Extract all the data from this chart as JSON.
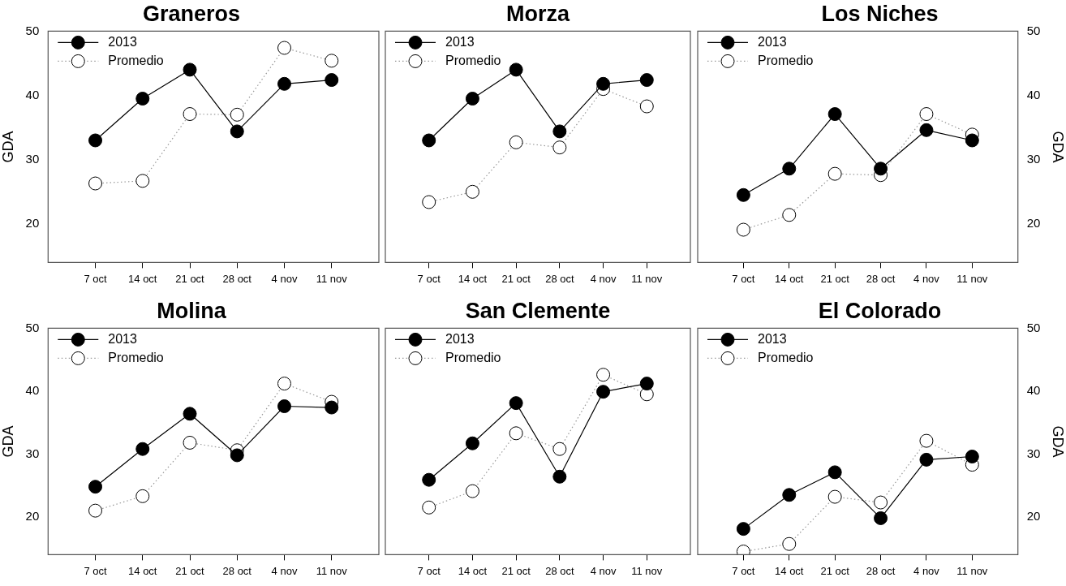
{
  "chart_data": [
    {
      "type": "line",
      "title": "Graneros",
      "ylabel": "GDA",
      "categories": [
        "7 oct",
        "14 oct",
        "21 oct",
        "28 oct",
        "4 nov",
        "11 nov"
      ],
      "ylim": [
        14,
        50
      ],
      "yticks": [
        20,
        30,
        40,
        50
      ],
      "legend": "top left",
      "marker": "circle",
      "series": [
        {
          "name": "2013",
          "color": "#000000",
          "line_style": "solid",
          "values": [
            33.0,
            39.5,
            44.0,
            34.4,
            41.8,
            42.4
          ]
        },
        {
          "name": "Promedio",
          "color": "#ffffff",
          "line_style": "dotted",
          "values": [
            26.3,
            26.7,
            37.1,
            37.0,
            47.4,
            45.4
          ]
        }
      ]
    },
    {
      "type": "line",
      "title": "Morza",
      "categories": [
        "7 oct",
        "14 oct",
        "21 oct",
        "28 oct",
        "4 nov",
        "11 nov"
      ],
      "ylim": [
        14,
        50
      ],
      "tick_labels": "x",
      "legend": "top left",
      "marker": "circle",
      "series": [
        {
          "name": "2013",
          "color": "#000000",
          "line_style": "solid",
          "values": [
            33.0,
            39.5,
            44.0,
            34.4,
            41.8,
            42.4
          ]
        },
        {
          "name": "Promedio",
          "color": "#ffffff",
          "line_style": "dotted",
          "values": [
            23.4,
            25.0,
            32.7,
            31.9,
            41.0,
            38.3
          ]
        }
      ]
    },
    {
      "type": "line",
      "title": "Los Niches",
      "y2label": "GDA",
      "categories": [
        "7 oct",
        "14 oct",
        "21 oct",
        "28 oct",
        "4 nov",
        "11 nov"
      ],
      "y2lim": [
        14,
        50
      ],
      "y2ticks": [
        20,
        30,
        40,
        50
      ],
      "legend": "top left",
      "marker": "circle",
      "series": [
        {
          "name": "2013",
          "color": "#000000",
          "line_style": "solid",
          "axis": "y2",
          "values": [
            24.5,
            28.6,
            37.1,
            28.6,
            34.6,
            33.0
          ]
        },
        {
          "name": "Promedio",
          "color": "#ffffff",
          "line_style": "dotted",
          "axis": "y2",
          "values": [
            19.1,
            21.4,
            27.8,
            27.6,
            37.1,
            33.9
          ]
        }
      ]
    },
    {
      "type": "line",
      "title": "Molina",
      "ylabel": "GDA",
      "categories": [
        "7 oct",
        "14 oct",
        "21 oct",
        "28 oct",
        "4 nov",
        "11 nov"
      ],
      "ylim": [
        14,
        50
      ],
      "yticks": [
        20,
        30,
        40,
        50
      ],
      "legend": "top left",
      "marker": "circle",
      "series": [
        {
          "name": "2013",
          "color": "#000000",
          "line_style": "solid",
          "values": [
            24.8,
            30.8,
            36.4,
            29.8,
            37.6,
            37.4
          ]
        },
        {
          "name": "Promedio",
          "color": "#ffffff",
          "line_style": "dotted",
          "values": [
            21.0,
            23.3,
            31.8,
            30.6,
            41.2,
            38.3
          ]
        }
      ]
    },
    {
      "type": "line",
      "title": "San Clemente",
      "categories": [
        "7 oct",
        "14 oct",
        "21 oct",
        "28 oct",
        "4 nov",
        "11 nov"
      ],
      "ylim": [
        14,
        50
      ],
      "tick_labels": "x",
      "legend": "top left",
      "marker": "circle",
      "series": [
        {
          "name": "2013",
          "color": "#000000",
          "line_style": "solid",
          "values": [
            25.9,
            31.7,
            38.1,
            26.4,
            39.9,
            41.2
          ]
        },
        {
          "name": "Promedio",
          "color": "#ffffff",
          "line_style": "dotted",
          "values": [
            21.5,
            24.1,
            33.3,
            30.8,
            42.6,
            39.5
          ]
        }
      ]
    },
    {
      "type": "line",
      "title": "El Colorado",
      "y2label": "GDA",
      "categories": [
        "7 oct",
        "14 oct",
        "21 oct",
        "28 oct",
        "4 nov",
        "11 nov"
      ],
      "y2lim": [
        14,
        50
      ],
      "y2ticks": [
        20,
        30,
        40,
        50
      ],
      "legend": "top left",
      "marker": "circle",
      "series": [
        {
          "name": "2013",
          "color": "#000000",
          "line_style": "solid",
          "axis": "y2",
          "values": [
            18.1,
            23.5,
            27.1,
            19.8,
            29.1,
            29.6
          ]
        },
        {
          "name": "Promedio",
          "color": "#ffffff",
          "line_style": "dotted",
          "axis": "y2",
          "values": [
            14.5,
            15.7,
            23.2,
            22.3,
            32.1,
            28.3
          ]
        }
      ]
    }
  ]
}
